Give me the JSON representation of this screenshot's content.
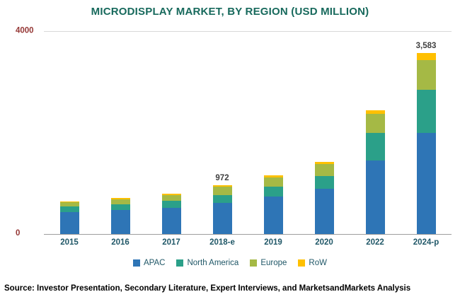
{
  "title": "MICRODISPLAY MARKET, BY REGION (USD MILLION)",
  "source": "Source: Investor Presentation, Secondary Literature, Expert Interviews, and MarketsandMarkets Analysis",
  "chart_data": {
    "type": "bar",
    "stacked": true,
    "title": "MICRODISPLAY MARKET, BY REGION (USD MILLION)",
    "xlabel": "",
    "ylabel": "USD Million",
    "ylim": [
      0,
      4000
    ],
    "ytick_labels": [
      "4000",
      "0"
    ],
    "grid": "top-gridline-only",
    "legend_position": "bottom",
    "categories": [
      "2015",
      "2016",
      "2017",
      "2018-e",
      "2019",
      "2020",
      "2022",
      "2024-p"
    ],
    "series": [
      {
        "name": "APAC",
        "color": "#2e75b6",
        "values": [
          430,
          470,
          520,
          610,
          740,
          900,
          1450,
          2000
        ]
      },
      {
        "name": "North America",
        "color": "#2ba089",
        "values": [
          110,
          120,
          135,
          160,
          200,
          250,
          550,
          850
        ]
      },
      {
        "name": "Europe",
        "color": "#a5b945",
        "values": [
          90,
          100,
          115,
          170,
          180,
          230,
          380,
          590
        ]
      },
      {
        "name": "RoW",
        "color": "#ffc000",
        "values": [
          20,
          25,
          30,
          32,
          40,
          50,
          70,
          143
        ]
      }
    ],
    "totals": [
      650,
      715,
      800,
      972,
      1160,
      1430,
      2450,
      3583
    ],
    "bar_labels": [
      "",
      "",
      "",
      "972",
      "",
      "",
      "",
      "3,583"
    ]
  }
}
